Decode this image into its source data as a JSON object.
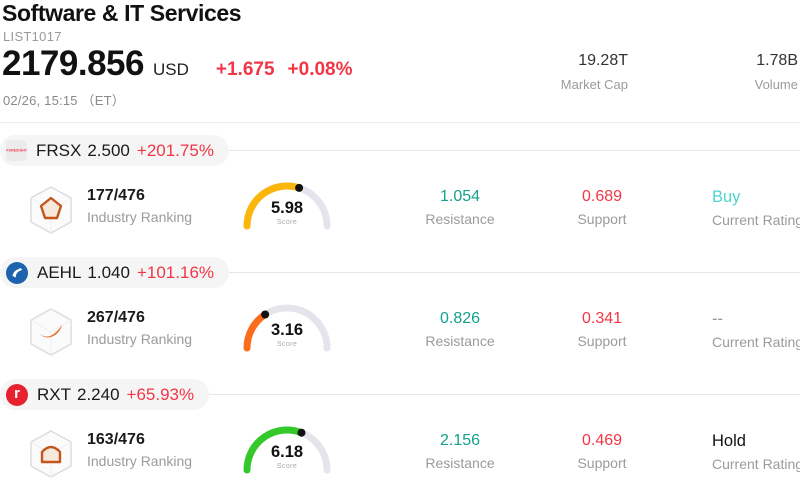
{
  "header": {
    "title": "Software & IT Services",
    "list_id": "LIST1017",
    "price": "2179.856",
    "currency": "USD",
    "change_abs": "+1.675",
    "change_pct": "+0.08%",
    "timestamp": "02/26, 15:15 （ET）",
    "market_cap_value": "19.28T",
    "market_cap_label": "Market Cap",
    "volume_value": "1.78B",
    "volume_label": "Volume"
  },
  "labels": {
    "industry_ranking": "Industry Ranking",
    "score": "Score",
    "resistance": "Resistance",
    "support": "Support",
    "current_rating": "Current Rating"
  },
  "colors": {
    "change_red": "#f23645",
    "resistance_teal": "#13a08d",
    "support_red": "#f23645",
    "gauge_track": "#e4e4ec"
  },
  "rows": [
    {
      "ticker": "FRSX",
      "price": "2.500",
      "change": "+201.75%",
      "logo_text": "FORESIGHT",
      "ranking": "177/476",
      "score": 5.98,
      "gauge_color": "#fbb60b",
      "resistance": "1.054",
      "support": "0.689",
      "rating": "Buy",
      "rating_color": "#4ad6cc"
    },
    {
      "ticker": "AEHL",
      "price": "1.040",
      "change": "+101.16%",
      "logo_text": "",
      "ranking": "267/476",
      "score": 3.16,
      "gauge_color": "#fb6c1c",
      "resistance": "0.826",
      "support": "0.341",
      "rating": "--",
      "rating_color": "#999999"
    },
    {
      "ticker": "RXT",
      "price": "2.240",
      "change": "+65.93%",
      "logo_text": "r",
      "ranking": "163/476",
      "score": 6.18,
      "gauge_color": "#35c82b",
      "resistance": "2.156",
      "support": "0.469",
      "rating": "Hold",
      "rating_color": "#111111"
    }
  ]
}
